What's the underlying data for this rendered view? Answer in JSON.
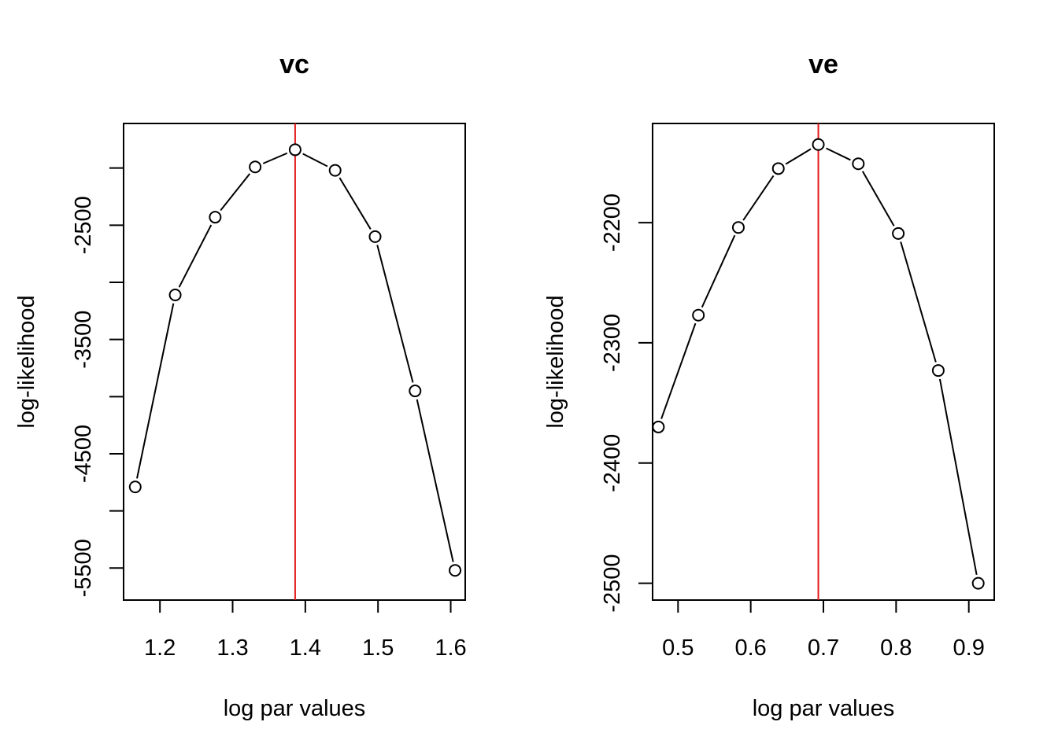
{
  "chart_data": [
    {
      "type": "line",
      "title": "vc",
      "xlabel": "log par values",
      "ylabel": "log-likelihood",
      "xlim": [
        1.15,
        1.62
      ],
      "ylim": [
        -5780,
        -1610
      ],
      "xticks": [
        1.2,
        1.3,
        1.4,
        1.5,
        1.6
      ],
      "xtick_labels": [
        "1.2",
        "1.3",
        "1.4",
        "1.5",
        "1.6"
      ],
      "yticks": [
        -2000,
        -2500,
        -3000,
        -3500,
        -4000,
        -4500,
        -5000,
        -5500
      ],
      "ytick_labels": [
        "",
        "-2500",
        "",
        "-3500",
        "",
        "-4500",
        "",
        "-5500"
      ],
      "series": [
        {
          "x": [
            1.166,
            1.221,
            1.276,
            1.331,
            1.386,
            1.441,
            1.496,
            1.551,
            1.606
          ],
          "y": [
            -4790,
            -3110,
            -2430,
            -1990,
            -1840,
            -2020,
            -2600,
            -3950,
            -5520
          ]
        }
      ],
      "vline": {
        "x": 1.386,
        "color": "#e31a1c"
      },
      "marker": "open-circle",
      "line_color": "#000000",
      "grid": false
    },
    {
      "type": "line",
      "title": "ve",
      "xlabel": "log par values",
      "ylabel": "log-likelihood",
      "xlim": [
        0.465,
        0.935
      ],
      "ylim": [
        -2514,
        -2117.5
      ],
      "xticks": [
        0.5,
        0.6,
        0.7,
        0.8,
        0.9
      ],
      "xtick_labels": [
        "0.5",
        "0.6",
        "0.7",
        "0.8",
        "0.9"
      ],
      "yticks": [
        -2200,
        -2300,
        -2400,
        -2500
      ],
      "ytick_labels": [
        "-2200",
        "-2300",
        "-2400",
        "-2500"
      ],
      "series": [
        {
          "x": [
            0.473,
            0.528,
            0.583,
            0.638,
            0.693,
            0.748,
            0.803,
            0.858,
            0.913
          ],
          "y": [
            -2370,
            -2277,
            -2204,
            -2155,
            -2135,
            -2151,
            -2209,
            -2323,
            -2500
          ]
        }
      ],
      "vline": {
        "x": 0.693,
        "color": "#e31a1c"
      },
      "marker": "open-circle",
      "line_color": "#000000",
      "grid": false
    }
  ]
}
